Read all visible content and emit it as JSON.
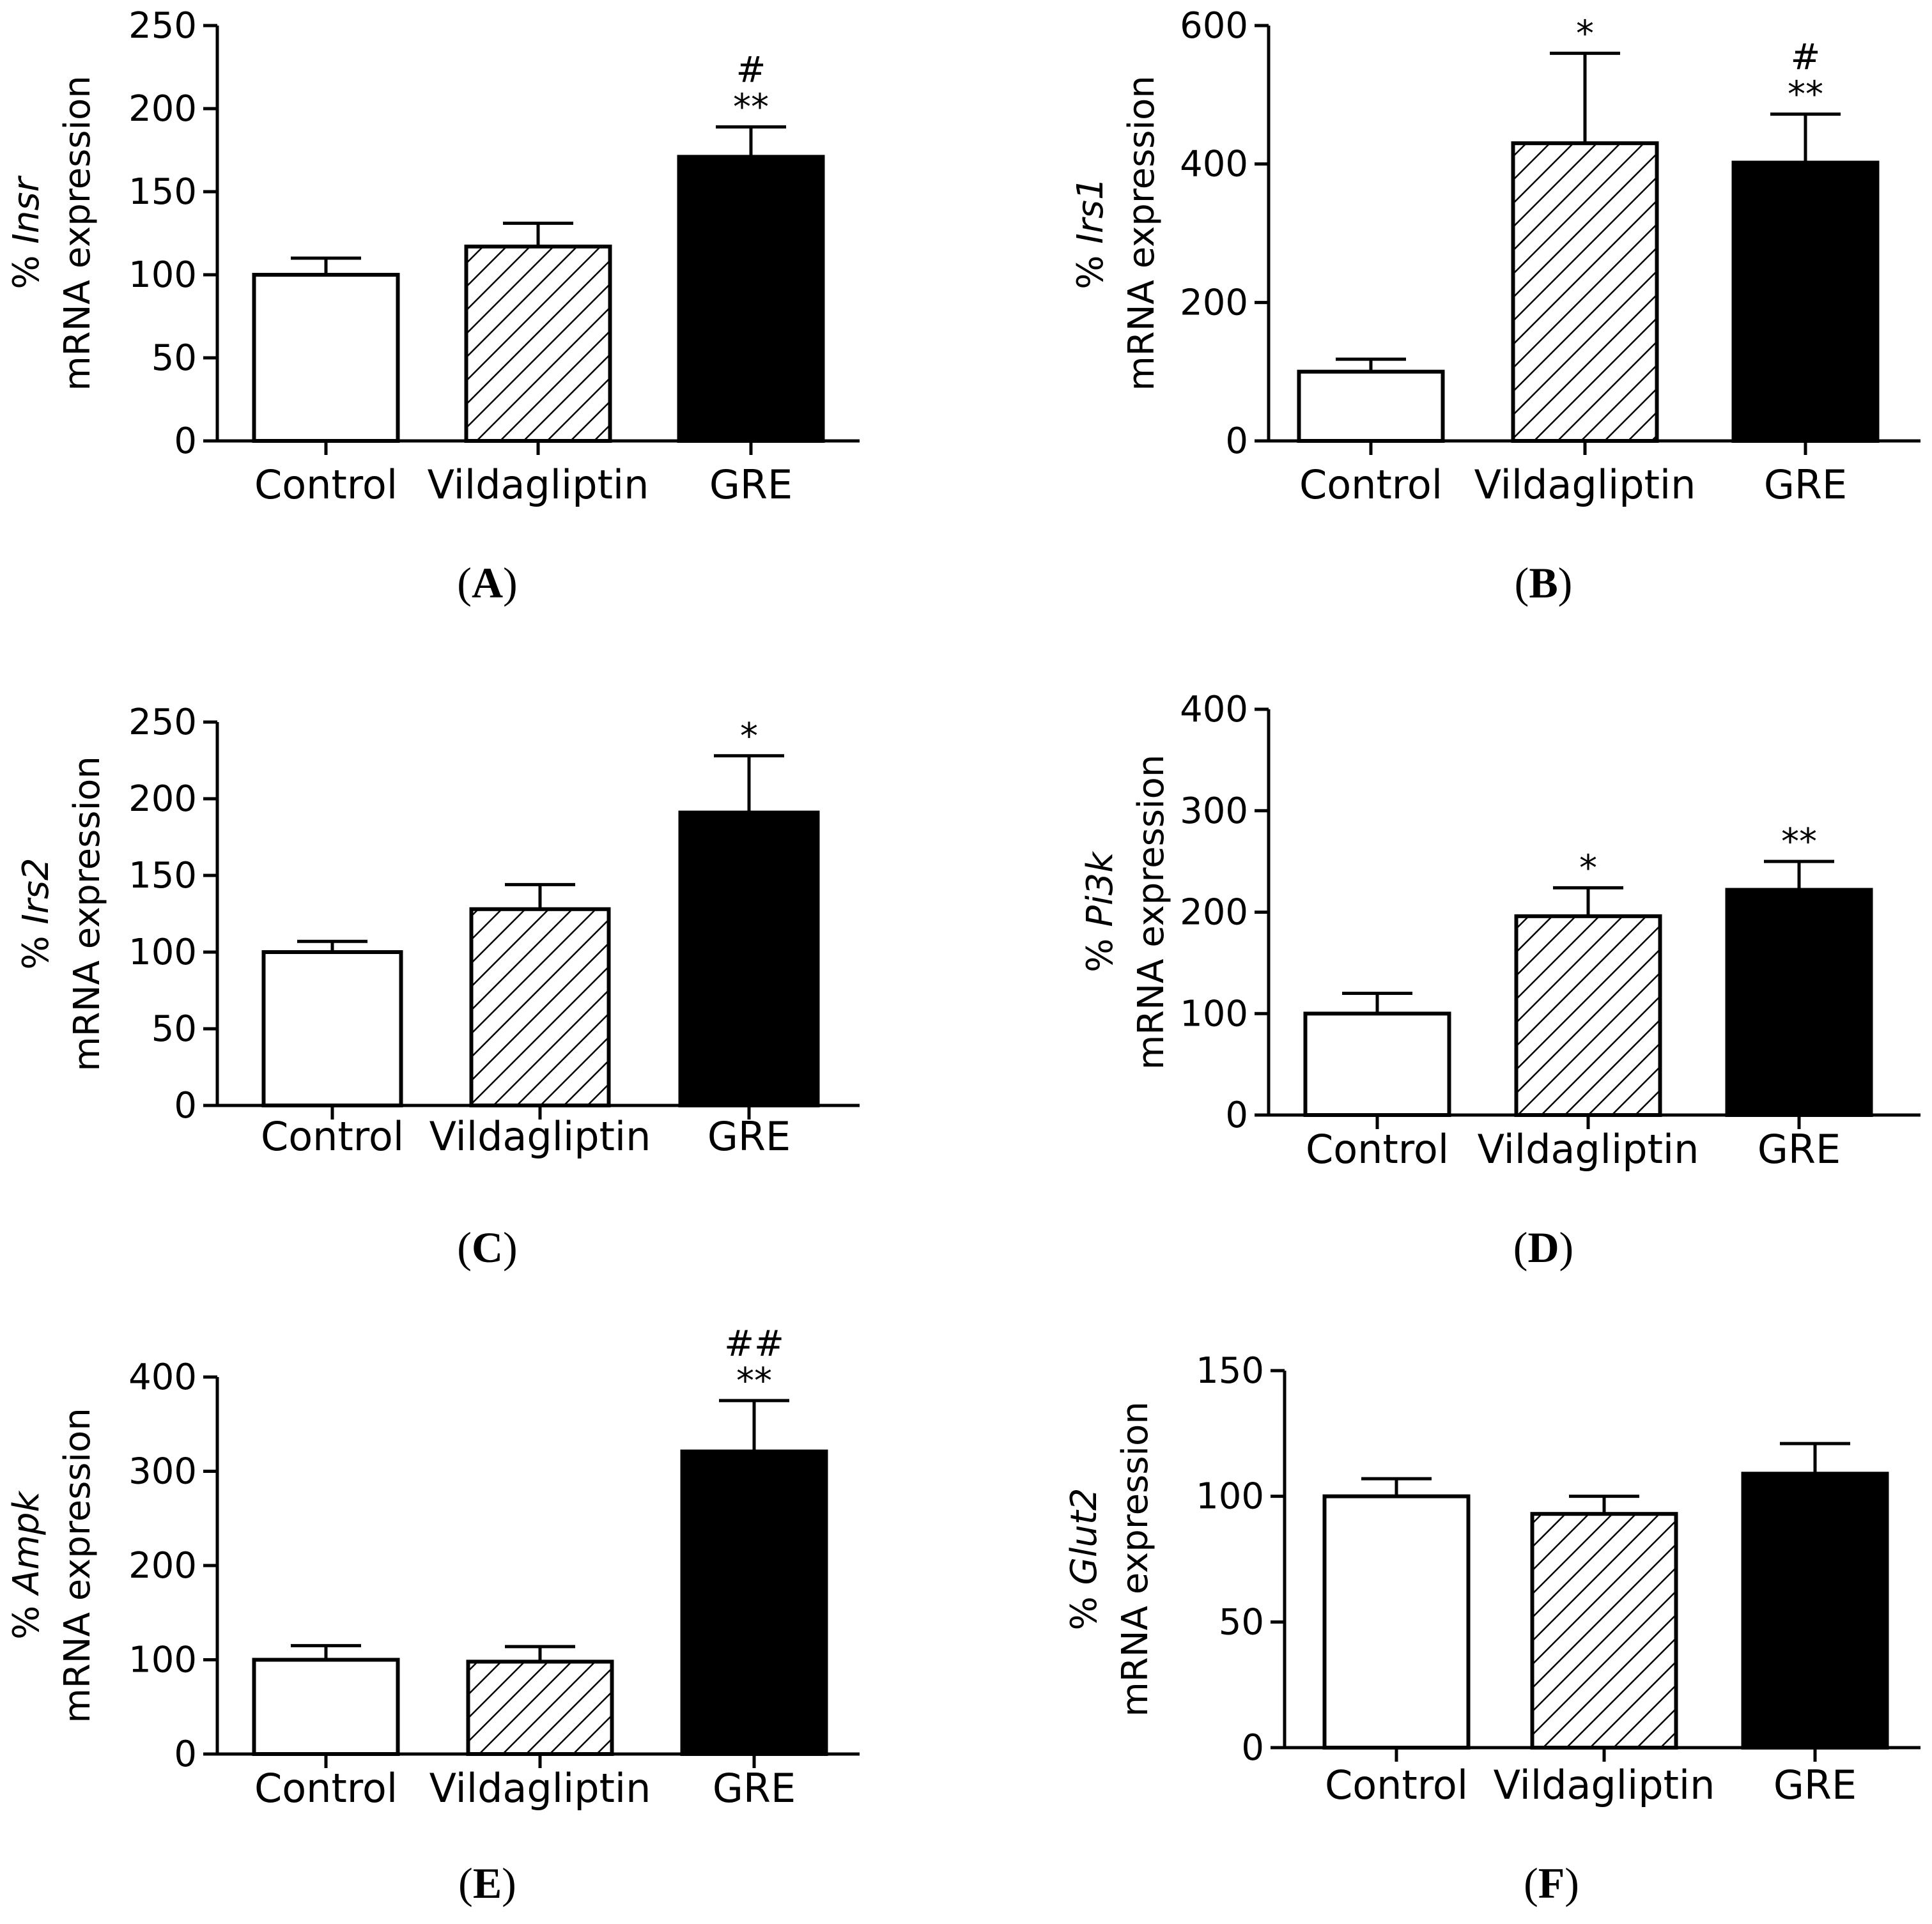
{
  "colors": {
    "axis": "#000000",
    "control_fill": "#ffffff",
    "gre_fill": "#000000"
  },
  "chart_data": [
    {
      "type": "bar",
      "panel_label": "A",
      "categories": [
        "Control",
        "Vildagliptin",
        "GRE"
      ],
      "fills": [
        "white",
        "hatch",
        "black"
      ],
      "values": [
        100,
        117,
        171
      ],
      "errors": [
        10,
        14,
        18
      ],
      "significance": [
        "",
        "",
        "**"
      ],
      "significance2": [
        "",
        "",
        "#"
      ],
      "ylabel_gene": "Insr",
      "ylabel_prefix": "% ",
      "ylabel_line2": "mRNA expression",
      "ylim": [
        0,
        250
      ],
      "yticks": [
        0,
        50,
        100,
        150,
        200,
        250
      ]
    },
    {
      "type": "bar",
      "panel_label": "B",
      "categories": [
        "Control",
        "Vildagliptin",
        "GRE"
      ],
      "fills": [
        "white",
        "hatch",
        "black"
      ],
      "values": [
        100,
        430,
        402
      ],
      "errors": [
        18,
        130,
        70
      ],
      "significance": [
        "",
        "*",
        "**"
      ],
      "significance2": [
        "",
        "",
        "#"
      ],
      "ylabel_gene": "Irs1",
      "ylabel_prefix": "% ",
      "ylabel_line2": "mRNA expression",
      "ylim": [
        0,
        600
      ],
      "yticks": [
        0,
        200,
        400,
        600
      ]
    },
    {
      "type": "bar",
      "panel_label": "C",
      "categories": [
        "Control",
        "Vildagliptin",
        "GRE"
      ],
      "fills": [
        "white",
        "hatch",
        "black"
      ],
      "values": [
        100,
        128,
        191
      ],
      "errors": [
        7,
        16,
        37
      ],
      "significance": [
        "",
        "",
        "*"
      ],
      "significance2": [
        "",
        "",
        ""
      ],
      "ylabel_gene": "Irs2",
      "ylabel_prefix": "% ",
      "ylabel_line2": "mRNA expression",
      "ylim": [
        0,
        250
      ],
      "yticks": [
        0,
        50,
        100,
        150,
        200,
        250
      ]
    },
    {
      "type": "bar",
      "panel_label": "D",
      "categories": [
        "Control",
        "Vildagliptin",
        "GRE"
      ],
      "fills": [
        "white",
        "hatch",
        "black"
      ],
      "values": [
        100,
        196,
        222
      ],
      "errors": [
        20,
        28,
        28
      ],
      "significance": [
        "",
        "*",
        "**"
      ],
      "significance2": [
        "",
        "",
        ""
      ],
      "ylabel_gene": "Pi3k",
      "ylabel_prefix": "% ",
      "ylabel_line2": "mRNA expression",
      "ylim": [
        0,
        400
      ],
      "yticks": [
        0,
        100,
        200,
        300,
        400
      ]
    },
    {
      "type": "bar",
      "panel_label": "E",
      "categories": [
        "Control",
        "Vildagliptin",
        "GRE"
      ],
      "fills": [
        "white",
        "hatch",
        "black"
      ],
      "values": [
        100,
        98,
        321
      ],
      "errors": [
        15,
        16,
        54
      ],
      "significance": [
        "",
        "",
        "**"
      ],
      "significance2": [
        "",
        "",
        "##"
      ],
      "ylabel_gene": "Ampk",
      "ylabel_prefix": "% ",
      "ylabel_line2": "mRNA expression",
      "ylim": [
        0,
        400
      ],
      "yticks": [
        0,
        100,
        200,
        300,
        400
      ]
    },
    {
      "type": "bar",
      "panel_label": "F",
      "categories": [
        "Control",
        "Vildagliptin",
        "GRE"
      ],
      "fills": [
        "white",
        "hatch",
        "black"
      ],
      "values": [
        100,
        93,
        109
      ],
      "errors": [
        7,
        7,
        12
      ],
      "significance": [
        "",
        "",
        ""
      ],
      "significance2": [
        "",
        "",
        ""
      ],
      "ylabel_gene": "Glut2",
      "ylabel_prefix": "% ",
      "ylabel_line2": "mRNA expression",
      "ylim": [
        0,
        150
      ],
      "yticks": [
        0,
        50,
        100,
        150
      ]
    }
  ]
}
